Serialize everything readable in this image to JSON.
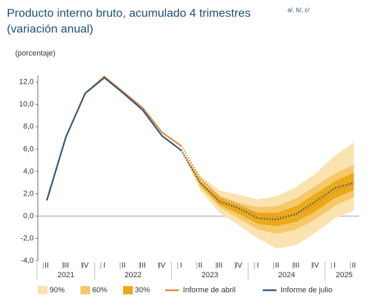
{
  "chart_data": {
    "type": "fan",
    "title": "Producto interno bruto, acumulado 4 trimestres",
    "title_notes": "a/, b/, c/",
    "subtitle": "(variación anual)",
    "y_label": "(porcentaje)",
    "categories": [
      "II",
      "III",
      "IV",
      "I",
      "II",
      "III",
      "IV",
      "I",
      "II",
      "III",
      "IV",
      "I",
      "II",
      "III",
      "IV",
      "I",
      "II"
    ],
    "years": [
      "2021",
      "2022",
      "2023",
      "2024",
      "2025"
    ],
    "ylim": [
      -4,
      12.6
    ],
    "yticks": [
      {
        "value": -4,
        "label": "-4,0"
      },
      {
        "value": -2,
        "label": "-2,0"
      },
      {
        "value": 0,
        "label": "0,0"
      },
      {
        "value": 2,
        "label": "2,0"
      },
      {
        "value": 4,
        "label": "4,0"
      },
      {
        "value": 6,
        "label": "6,0"
      },
      {
        "value": 8,
        "label": "8,0"
      },
      {
        "value": 10,
        "label": "10,0"
      },
      {
        "value": 12,
        "label": "12,0"
      }
    ],
    "bands": [
      {
        "name": "90%",
        "color": "#fbe3b0",
        "lower": [
          null,
          null,
          null,
          null,
          null,
          null,
          null,
          5.9,
          2.3,
          0.3,
          -0.8,
          -2.0,
          -2.9,
          -2.6,
          -1.5,
          -0.2,
          0.5
        ],
        "upper": [
          null,
          null,
          null,
          null,
          null,
          null,
          null,
          5.9,
          3.6,
          2.3,
          1.9,
          1.5,
          1.8,
          2.6,
          3.8,
          5.4,
          6.6
        ]
      },
      {
        "name": "60%",
        "color": "#f5c96a",
        "lower": [
          null,
          null,
          null,
          null,
          null,
          null,
          null,
          5.9,
          2.6,
          0.8,
          -0.2,
          -1.2,
          -1.6,
          -1.2,
          -0.3,
          0.9,
          1.7
        ],
        "upper": [
          null,
          null,
          null,
          null,
          null,
          null,
          null,
          5.9,
          3.3,
          1.8,
          1.2,
          0.8,
          0.9,
          1.6,
          2.7,
          3.8,
          4.6
        ]
      },
      {
        "name": "30%",
        "color": "#ebaa17",
        "lower": [
          null,
          null,
          null,
          null,
          null,
          null,
          null,
          5.9,
          2.8,
          1.0,
          0.2,
          -0.7,
          -0.9,
          -0.5,
          0.4,
          1.6,
          2.3
        ],
        "upper": [
          null,
          null,
          null,
          null,
          null,
          null,
          null,
          5.9,
          3.1,
          1.6,
          0.9,
          0.3,
          0.3,
          0.9,
          2.0,
          3.1,
          3.9
        ]
      }
    ],
    "series": [
      {
        "name": "Informe de abril",
        "color": "#e8823a",
        "values": [
          1.4,
          7.1,
          11.0,
          12.5,
          11.1,
          9.7,
          7.5,
          6.3,
          3.4,
          1.7,
          1.0,
          0.1,
          -0.1,
          0.1,
          1.0,
          2.2,
          2.9
        ]
      },
      {
        "name": "Informe de julio",
        "color": "#2e5a7a",
        "values": [
          1.4,
          7.1,
          11.0,
          12.4,
          11.0,
          9.5,
          7.2,
          5.9,
          3.0,
          1.3,
          0.7,
          -0.2,
          -0.3,
          0.2,
          1.3,
          2.5,
          3.0
        ]
      }
    ],
    "projection_start": 7
  }
}
